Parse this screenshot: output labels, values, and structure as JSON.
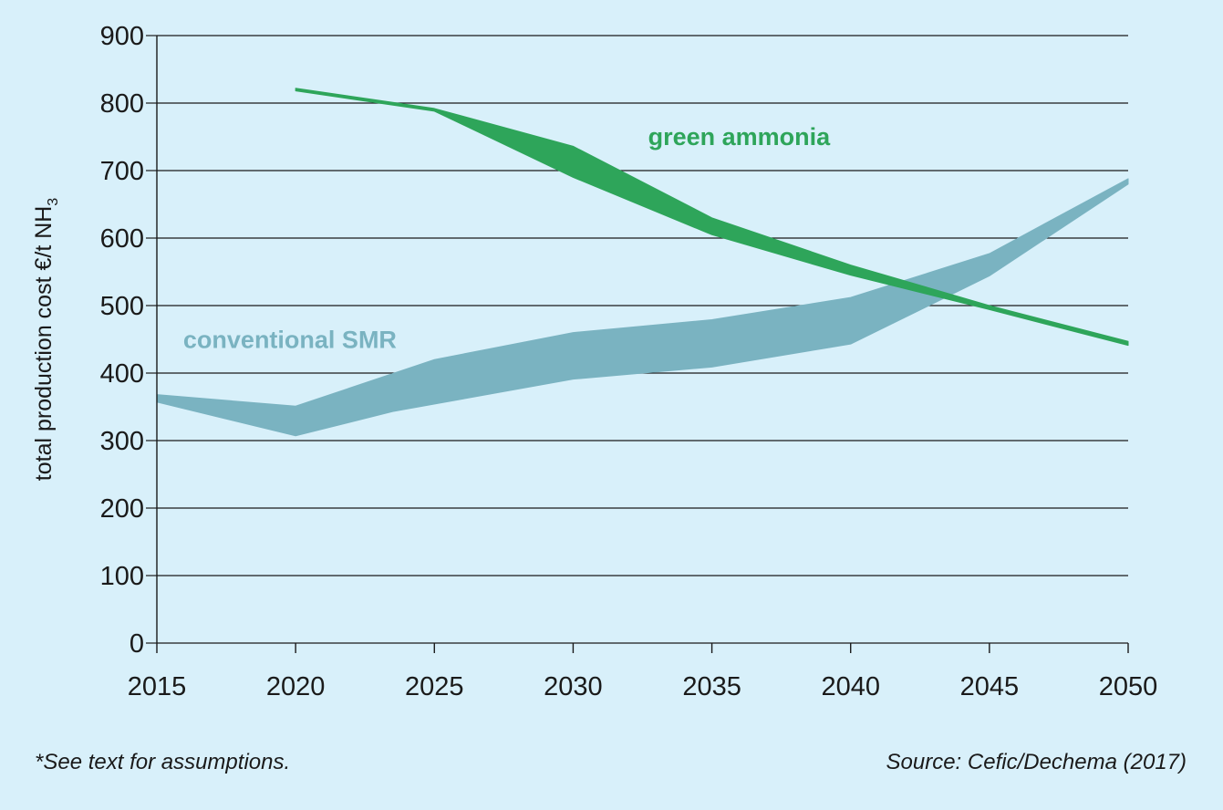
{
  "chart_data": {
    "type": "area",
    "title": "",
    "xlabel": "",
    "ylabel": "total production cost €/t NH",
    "ylabel_subscript": "3",
    "x": [
      2015,
      2020,
      2025,
      2030,
      2035,
      2040,
      2045,
      2050
    ],
    "xlim": [
      2015,
      2050
    ],
    "ylim": [
      0,
      900
    ],
    "yticks": [
      0,
      100,
      200,
      300,
      400,
      500,
      600,
      700,
      800,
      900
    ],
    "grid": "horizontal",
    "series": [
      {
        "name": "conventional SMR",
        "color": "#7ab3c1",
        "label_color": "#7ab3c1",
        "upper": [
          {
            "x": 2015,
            "y": 368
          },
          {
            "x": 2020,
            "y": 351
          },
          {
            "x": 2025,
            "y": 420
          },
          {
            "x": 2030,
            "y": 460
          },
          {
            "x": 2035,
            "y": 479
          },
          {
            "x": 2040,
            "y": 512
          },
          {
            "x": 2045,
            "y": 577
          },
          {
            "x": 2050,
            "y": 688
          }
        ],
        "lower": [
          {
            "x": 2015,
            "y": 357
          },
          {
            "x": 2020,
            "y": 307
          },
          {
            "x": 2023.5,
            "y": 343
          },
          {
            "x": 2030,
            "y": 391
          },
          {
            "x": 2035,
            "y": 409
          },
          {
            "x": 2040,
            "y": 443
          },
          {
            "x": 2045,
            "y": 544
          },
          {
            "x": 2050,
            "y": 680
          }
        ]
      },
      {
        "name": "green ammonia",
        "color": "#2ea55a",
        "label_color": "#2ea55a",
        "upper": [
          {
            "x": 2020,
            "y": 822
          },
          {
            "x": 2025,
            "y": 792
          },
          {
            "x": 2030,
            "y": 736
          },
          {
            "x": 2035,
            "y": 630
          },
          {
            "x": 2040,
            "y": 560
          },
          {
            "x": 2045,
            "y": 500
          },
          {
            "x": 2050,
            "y": 447
          }
        ],
        "lower": [
          {
            "x": 2020,
            "y": 818
          },
          {
            "x": 2025,
            "y": 788
          },
          {
            "x": 2030,
            "y": 690
          },
          {
            "x": 2035,
            "y": 605
          },
          {
            "x": 2040,
            "y": 545
          },
          {
            "x": 2045,
            "y": 494
          },
          {
            "x": 2050,
            "y": 441
          }
        ]
      }
    ]
  },
  "footnotes": {
    "left": "*See text for assumptions.",
    "right": "Source: Cefic/Dechema (2017)"
  }
}
